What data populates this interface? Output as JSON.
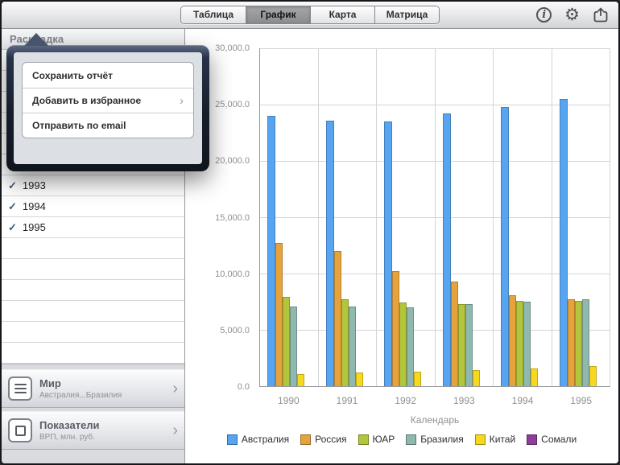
{
  "toolbar": {
    "segments": [
      {
        "label": "Таблица",
        "selected": false
      },
      {
        "label": "График",
        "selected": true
      },
      {
        "label": "Карта",
        "selected": false
      },
      {
        "label": "Матрица",
        "selected": false
      }
    ],
    "info_glyph": "i",
    "gear_glyph": "⚙"
  },
  "sidebar": {
    "header": "Раскладка",
    "years": [
      {
        "label": "1993",
        "checked": true
      },
      {
        "label": "1994",
        "checked": true
      },
      {
        "label": "1995",
        "checked": true
      }
    ],
    "footer": [
      {
        "title": "Мир",
        "subtitle": "Австралия...Бразилия",
        "icon": "list-icon"
      },
      {
        "title": "Показатели",
        "subtitle": "ВРП, млн. руб.",
        "icon": "square-outline-icon"
      }
    ]
  },
  "popover": {
    "items": [
      {
        "label": "Сохранить отчёт",
        "chevron": false
      },
      {
        "label": "Добавить в избранное",
        "chevron": true
      },
      {
        "label": "Отправить по email",
        "chevron": false
      }
    ]
  },
  "chart_data": {
    "type": "bar",
    "title": "",
    "xlabel": "Календарь",
    "ylabel": "",
    "ylim": [
      0,
      30000
    ],
    "yticks": [
      "30,000.0",
      "25,000.0",
      "20,000.0",
      "15,000.0",
      "10,000.0",
      "5,000.0",
      "0.0"
    ],
    "categories": [
      "1990",
      "1991",
      "1992",
      "1993",
      "1994",
      "1995"
    ],
    "series": [
      {
        "name": "Австралия",
        "color": "#57a5f1",
        "values": [
          24000,
          23600,
          23500,
          24200,
          24800,
          25500
        ]
      },
      {
        "name": "Россия",
        "color": "#e6a33c",
        "values": [
          12700,
          12000,
          10200,
          9300,
          8100,
          7700
        ]
      },
      {
        "name": "ЮАР",
        "color": "#b3c63b",
        "values": [
          7900,
          7700,
          7400,
          7300,
          7600,
          7600
        ]
      },
      {
        "name": "Бразилия",
        "color": "#8fb8ae",
        "values": [
          7100,
          7100,
          7000,
          7300,
          7500,
          7700
        ]
      },
      {
        "name": "Китай",
        "color": "#f8d71f",
        "values": [
          1100,
          1200,
          1300,
          1400,
          1600,
          1800
        ]
      },
      {
        "name": "Сомали",
        "color": "#8f3d9a",
        "values": [
          0,
          0,
          0,
          0,
          0,
          0
        ]
      }
    ],
    "legend_position": "bottom",
    "grid": true
  }
}
